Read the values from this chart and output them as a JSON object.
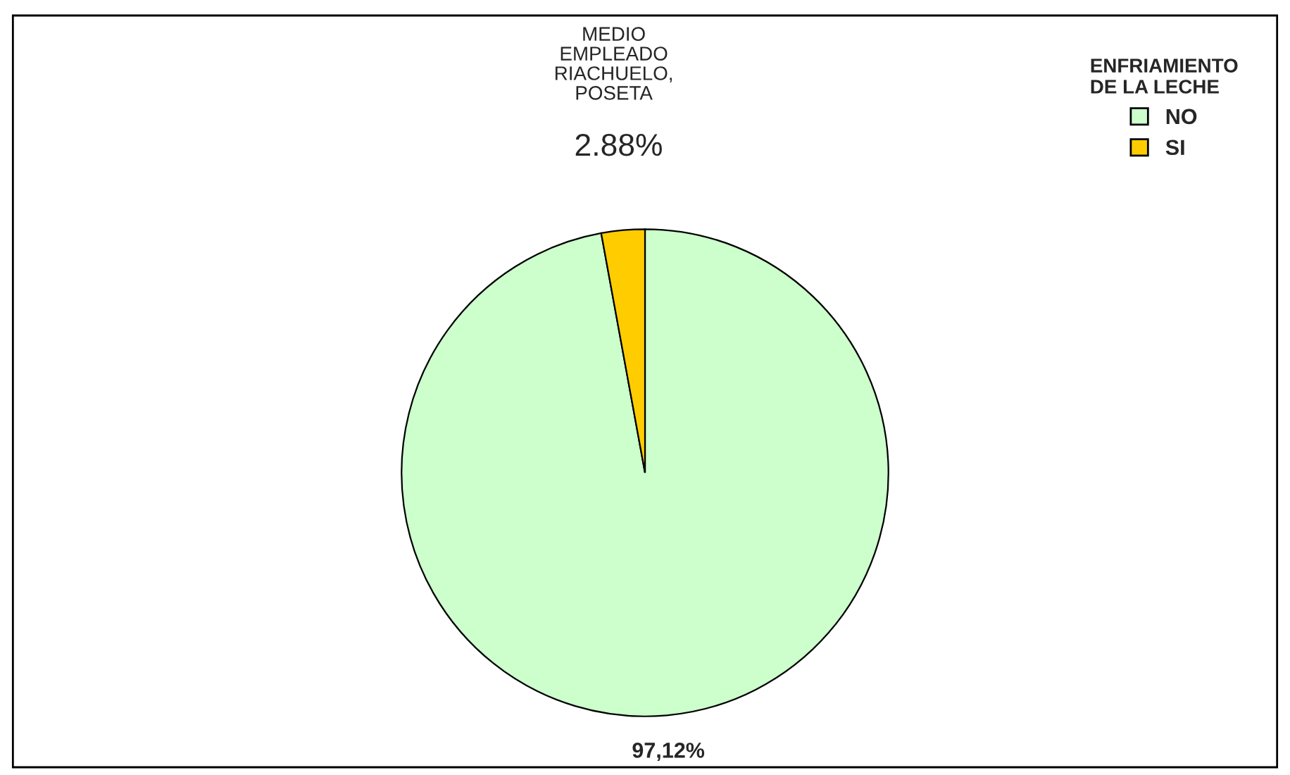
{
  "chart_data": {
    "type": "pie",
    "legend_title": "ENFRIAMIENTO\nDE LA LECHE",
    "categories": [
      "NO",
      "SI"
    ],
    "values": [
      97.12,
      2.88
    ],
    "colors": [
      "#ccffcc",
      "#ffcc00"
    ],
    "value_labels": [
      "97,12%",
      "2.88%"
    ],
    "annotations": [
      "MEDIO\nEMPLEADO\nRIACHUELO,\nPOSETA"
    ],
    "legend": "top right"
  }
}
